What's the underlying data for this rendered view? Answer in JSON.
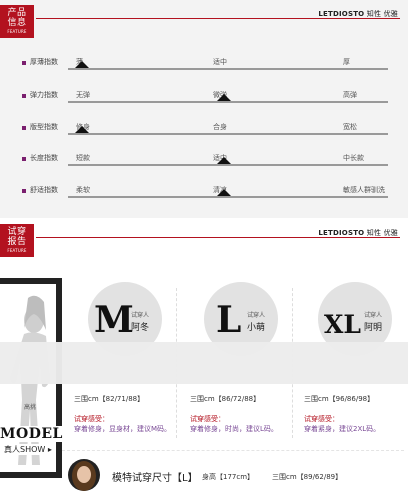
{
  "feature": {
    "tag_cn": "产品信息",
    "tag_en": "FEATURE",
    "brand": "LETDIOSTO",
    "brand_suffix": "知性 优雅",
    "rows": [
      {
        "label": "厚薄指数",
        "options": [
          "薄",
          "适中",
          "厚"
        ],
        "selected": 0
      },
      {
        "label": "弹力指数",
        "options": [
          "无弹",
          "微弹",
          "高弹"
        ],
        "selected": 1
      },
      {
        "label": "版型指数",
        "options": [
          "修身",
          "合身",
          "宽松"
        ],
        "selected": 0
      },
      {
        "label": "长度指数",
        "options": [
          "短款",
          "适中",
          "中长款"
        ],
        "selected": 1
      },
      {
        "label": "舒适指数",
        "options": [
          "柔软",
          "清凉",
          "敏感人群驯洗"
        ],
        "selected": 1
      }
    ]
  },
  "tryon": {
    "tag_cn": "试穿报告",
    "tag_en": "FEATURE",
    "brand": "LETDIOSTO",
    "brand_suffix": "知性 优雅",
    "model_word": "MODEL",
    "model_sub": "真人SHOW ▸",
    "model_fig_label": "高挑",
    "cols": [
      {
        "size": "M",
        "role": "试穿人",
        "name": "阿冬",
        "measure": "三围cm【82/71/88】",
        "feel_label": "试穿感受：",
        "feel_text": "穿着修身，显身材，建议M码。"
      },
      {
        "size": "L",
        "role": "试穿人",
        "name": "小萌",
        "measure": "三围cm【86/72/88】",
        "feel_label": "试穿感受：",
        "feel_text": "穿着修身，时尚，建议L码。"
      },
      {
        "size": "XL",
        "role": "试穿人",
        "name": "阿明",
        "measure": "三围cm【96/86/98】",
        "feel_label": "试穿感受：",
        "feel_text": "穿着紧身，建议2XL码。"
      }
    ],
    "footer": {
      "title": "模特试穿尺寸【L】",
      "height": "身高【177cm】",
      "measure": "三围cm【89/62/89】"
    }
  }
}
